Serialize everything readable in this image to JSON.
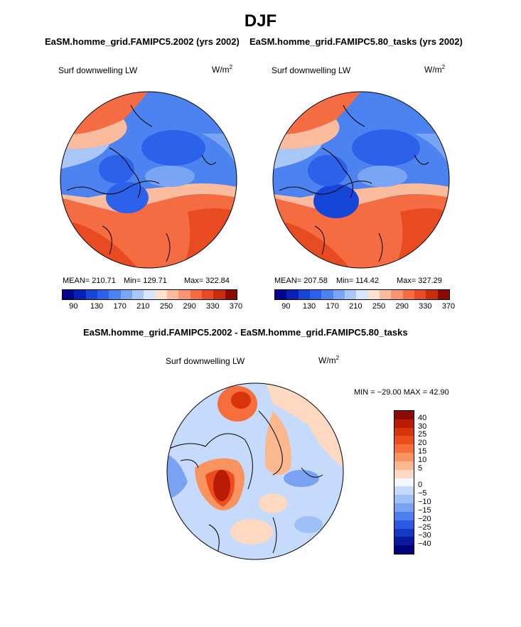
{
  "title": "DJF",
  "panels": [
    {
      "case": "EaSM.homme_grid.FAMIPC5.2002 (yrs 2002)",
      "variable": "Surf downwelling LW",
      "units": "W/m",
      "units_sup": "2",
      "mean": "MEAN= 210.71",
      "min": "Min= 129.71",
      "max": "Max= 322.84"
    },
    {
      "case": "EaSM.homme_grid.FAMIPC5.80_tasks (yrs 2002)",
      "variable": "Surf downwelling LW",
      "units": "W/m",
      "units_sup": "2",
      "mean": "MEAN= 207.58",
      "min": "Min= 114.42",
      "max": "Max= 327.29"
    }
  ],
  "field_colorbar": {
    "colors": [
      "#04038c",
      "#0a1fb4",
      "#1646d8",
      "#2c62ea",
      "#4d83f0",
      "#7aa5f5",
      "#a9c8f8",
      "#d6e6fb",
      "#fde2d2",
      "#fbbc9e",
      "#f89470",
      "#f56c43",
      "#e84a22",
      "#c72e0e",
      "#8b0a03"
    ],
    "ticks": [
      "90",
      "130",
      "170",
      "210",
      "250",
      "290",
      "330",
      "370"
    ]
  },
  "diff_panel": {
    "case": "EaSM.homme_grid.FAMIPC5.2002 - EaSM.homme_grid.FAMIPC5.80_tasks",
    "variable": "Surf downwelling LW",
    "units": "W/m",
    "units_sup": "2",
    "minmax": "MIN = −29.00 MAX =  42.90"
  },
  "diff_colorbar": {
    "colors": [
      "#8b0a03",
      "#b81c06",
      "#d8330c",
      "#ef4c1c",
      "#f66e3a",
      "#f99460",
      "#fbb78e",
      "#fdd9c2",
      "#f3f7ff",
      "#c6dafb",
      "#9fbff7",
      "#7aa2f2",
      "#4f7fec",
      "#2a5be2",
      "#1338c6",
      "#0a1a9e",
      "#03037e"
    ],
    "ticks": [
      "40",
      "30",
      "25",
      "20",
      "15",
      "10",
      "5",
      "0",
      "−5",
      "−10",
      "−15",
      "−20",
      "−25",
      "−30",
      "−40"
    ]
  }
}
